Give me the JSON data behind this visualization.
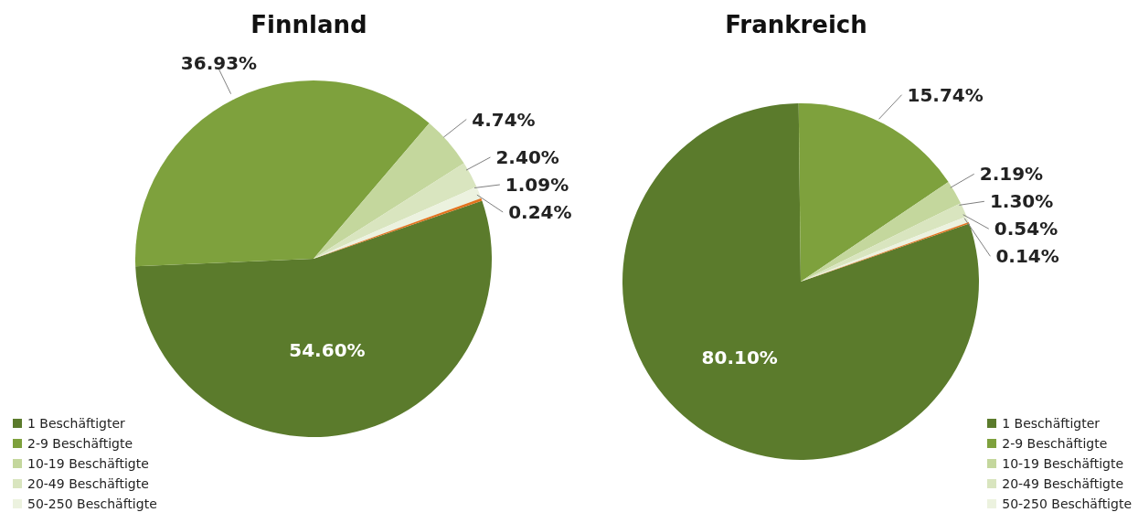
{
  "chart_data": [
    {
      "type": "pie",
      "title": "Finnland",
      "categories": [
        "1 Beschäftigter",
        "2-9 Beschäftigte",
        "10-19 Beschäftigte",
        "20-49 Beschäftigte",
        "50-250 Beschäftigte",
        null
      ],
      "values": [
        54.6,
        36.93,
        4.74,
        2.4,
        1.09,
        0.24
      ],
      "colors": [
        "#5b7b2c",
        "#7ea13d",
        "#c4d79d",
        "#d9e5bf",
        "#ecf2df",
        "#e2731e"
      ],
      "value_labels": [
        "54.60%",
        "36.93%",
        "4.74%",
        "2.40%",
        "1.09%",
        "0.24%"
      ],
      "legend": "bottom left"
    },
    {
      "type": "pie",
      "title": "Frankreich",
      "categories": [
        "1 Beschäftigter",
        "2-9 Beschäftigte",
        "10-19 Beschäftigte",
        "20-49 Beschäftigte",
        "50-250 Beschäftigte",
        null
      ],
      "values": [
        80.1,
        15.74,
        2.19,
        1.3,
        0.54,
        0.14
      ],
      "colors": [
        "#5b7b2c",
        "#7ea13d",
        "#c4d79d",
        "#d9e5bf",
        "#ecf2df",
        "#e2731e"
      ],
      "value_labels": [
        "80.10%",
        "15.74%",
        "2.19%",
        "1.30%",
        "0.54%",
        "0.14%"
      ],
      "legend": "bottom right"
    }
  ]
}
